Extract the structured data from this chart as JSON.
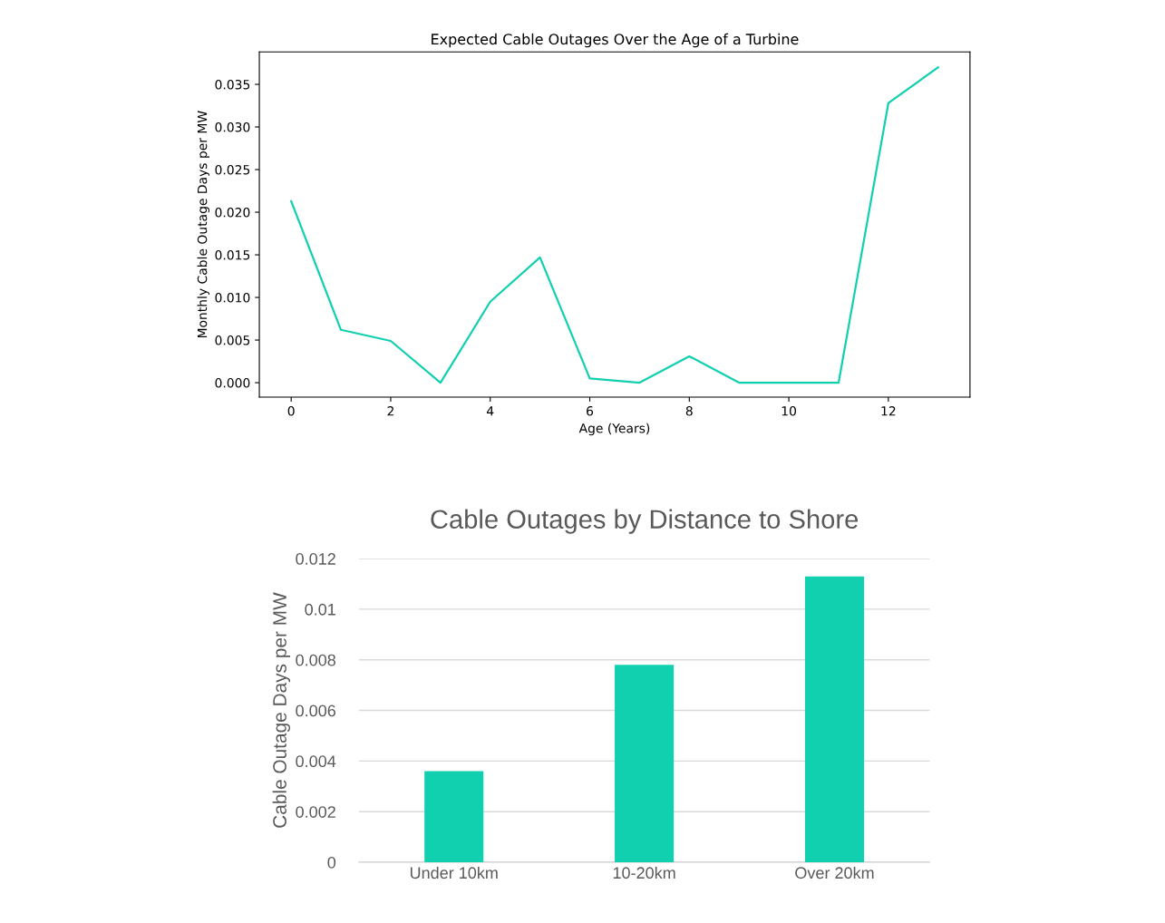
{
  "chart_data": [
    {
      "type": "line",
      "title": "Expected Cable Outages Over the Age of a Turbine",
      "xlabel": "Age (Years)",
      "ylabel": "Monthly Cable Outage Days per MW",
      "x": [
        0,
        1,
        2,
        3,
        4,
        5,
        6,
        7,
        8,
        9,
        10,
        11,
        12,
        13
      ],
      "series": [
        {
          "color": "#11d0b0",
          "values": [
            0.0213,
            0.0062,
            0.0049,
            0.0,
            0.0095,
            0.0147,
            0.0005,
            0.0,
            0.0031,
            0.0,
            0.0,
            0.0,
            0.0328,
            0.037
          ]
        }
      ],
      "xlim": [
        -0.64,
        13.64
      ],
      "xticks": [
        0,
        2,
        4,
        6,
        8,
        10,
        12
      ],
      "ylim": [
        -0.0017,
        0.0388
      ],
      "yticks": [
        {
          "value": 0,
          "label": "0.000"
        },
        {
          "value": 0.005,
          "label": "0.005"
        },
        {
          "value": 0.01,
          "label": "0.010"
        },
        {
          "value": 0.015,
          "label": "0.015"
        },
        {
          "value": 0.02,
          "label": "0.020"
        },
        {
          "value": 0.025,
          "label": "0.025"
        },
        {
          "value": 0.03,
          "label": "0.030"
        },
        {
          "value": 0.035,
          "label": "0.035"
        }
      ],
      "grid": false,
      "legend": false,
      "marker": "none",
      "line_style": "solid"
    },
    {
      "type": "bar",
      "title": "Cable Outages by Distance to Shore",
      "ylabel": "Cable Outage Days per MW",
      "categories": [
        "Under 10km",
        "10-20km",
        "Over 20km"
      ],
      "series": [
        {
          "color": "#11d0b0",
          "values": [
            0.0036,
            0.0078,
            0.0113
          ]
        }
      ],
      "ylim": [
        0,
        0.012
      ],
      "yticks": [
        0,
        0.002,
        0.004,
        0.006,
        0.008,
        0.01,
        0.012
      ],
      "grid": "y",
      "legend": false
    }
  ]
}
